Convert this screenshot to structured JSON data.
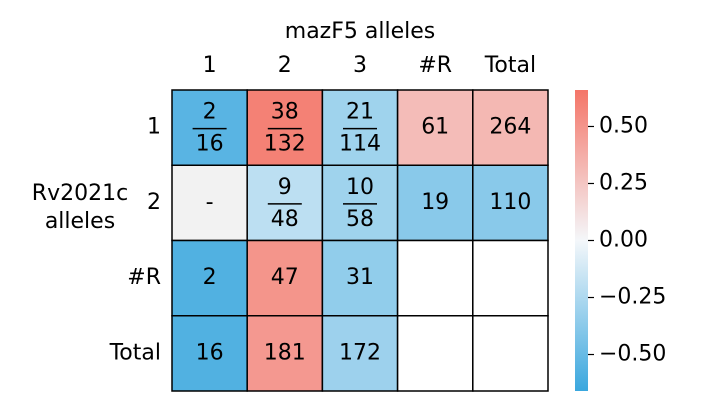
{
  "chart_data": {
    "type": "heatmap",
    "title": "mazF5 alleles",
    "ylabel": "Rv2021c alleles",
    "x_categories": [
      "1",
      "2",
      "3",
      "#R",
      "Total"
    ],
    "y_categories": [
      "1",
      "2",
      "#R",
      "Total"
    ],
    "cells": [
      [
        {
          "count": 2,
          "total": 16,
          "value": -0.55
        },
        {
          "count": 38,
          "total": 132,
          "value": 0.6
        },
        {
          "count": 21,
          "total": 114,
          "value": -0.3
        },
        {
          "count": 61,
          "value": 0.3
        },
        {
          "count": 264,
          "value": 0.32
        }
      ],
      [
        {
          "label": "-"
        },
        {
          "count": 9,
          "total": 48,
          "value": -0.2
        },
        {
          "count": 10,
          "total": 58,
          "value": -0.3
        },
        {
          "count": 19,
          "value": -0.38
        },
        {
          "count": 110,
          "value": -0.38
        }
      ],
      [
        {
          "count": 2,
          "value": -0.58
        },
        {
          "count": 47,
          "value": 0.5
        },
        {
          "count": 31,
          "value": -0.35
        },
        {},
        {}
      ],
      [
        {
          "count": 16,
          "value": -0.58
        },
        {
          "count": 181,
          "value": 0.48
        },
        {
          "count": 172,
          "value": -0.31
        },
        {},
        {}
      ]
    ],
    "cmap": [
      "#3aa7de",
      "#f4f7fa",
      "#f47568"
    ],
    "missing_color": "#f2f2f2",
    "clim": [
      -0.66,
      0.66
    ],
    "cticks": [
      {
        "value": 0.5,
        "label": "0.50"
      },
      {
        "value": 0.25,
        "label": "0.25"
      },
      {
        "value": 0,
        "label": "0.00"
      },
      {
        "value": -0.25,
        "label": "−0.25"
      },
      {
        "value": -0.5,
        "label": "−0.50"
      }
    ]
  }
}
